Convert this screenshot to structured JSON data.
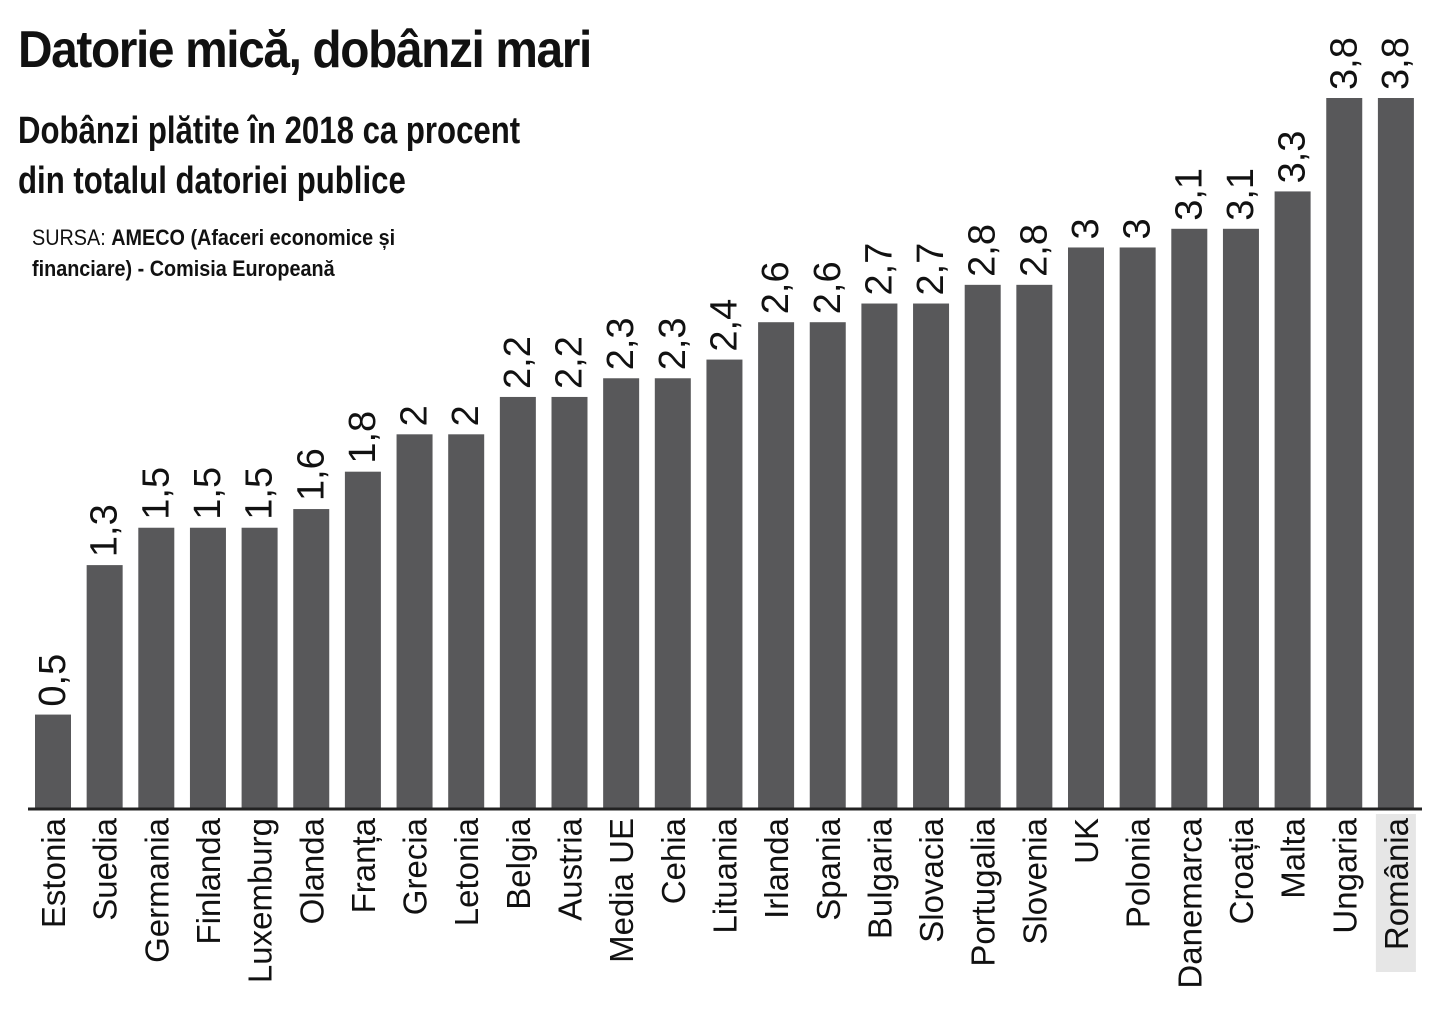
{
  "title": "Datorie mică, dobânzi mari",
  "subtitle": "Dobânzi plătite în 2018 ca procent din totalul datoriei publice",
  "source": {
    "label": "SURSA:",
    "text": "AMECO (Afaceri economice și financiare) - Comisia Europeană"
  },
  "chart_data": {
    "type": "bar",
    "title": "Datorie mică, dobânzi mari",
    "subtitle": "Dobânzi plătite în 2018 ca procent din totalul datoriei publice",
    "categories": [
      "Estonia",
      "Suedia",
      "Germania",
      "Finlanda",
      "Luxemburg",
      "Olanda",
      "Franța",
      "Grecia",
      "Letonia",
      "Belgia",
      "Austria",
      "Media UE",
      "Cehia",
      "Lituania",
      "Irlanda",
      "Spania",
      "Bulgaria",
      "Slovacia",
      "Portugalia",
      "Slovenia",
      "UK",
      "Polonia",
      "Danemarca",
      "Croația",
      "Malta",
      "Ungaria",
      "România"
    ],
    "values": [
      0.5,
      1.3,
      1.5,
      1.5,
      1.5,
      1.6,
      1.8,
      2,
      2,
      2.2,
      2.2,
      2.3,
      2.3,
      2.4,
      2.6,
      2.6,
      2.7,
      2.7,
      2.8,
      2.8,
      3,
      3,
      3.1,
      3.1,
      3.3,
      3.8,
      3.8
    ],
    "value_labels": [
      "0,5",
      "1,3",
      "1,5",
      "1,5",
      "1,5",
      "1,6",
      "1,8",
      "2",
      "2",
      "2,2",
      "2,2",
      "2,3",
      "2,3",
      "2,4",
      "2,6",
      "2,6",
      "2,7",
      "2,7",
      "2,8",
      "2,8",
      "3",
      "3",
      "3,1",
      "3,1",
      "3,3",
      "3,8",
      "3,8"
    ],
    "highlight_category": "România",
    "xlabel": "",
    "ylabel": "",
    "ylim": [
      0,
      3.8
    ],
    "grid": false,
    "legend": "none",
    "colors": {
      "bar": "#58585a",
      "axis": "#222222",
      "highlight_bg": "#e6e6e6",
      "text": "#111111"
    }
  }
}
